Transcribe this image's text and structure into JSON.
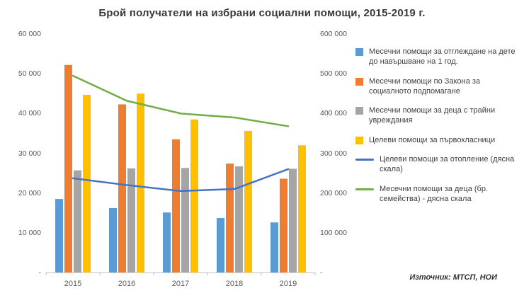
{
  "title": "Брой получатели на избрани социални помощи, 2015-2019 г.",
  "source": "Източник: МТСП, НОИ",
  "axes": {
    "left_ticks": [
      "60 000",
      "50 000",
      "40 000",
      "30 000",
      "20 000",
      "10 000",
      "-"
    ],
    "right_ticks": [
      "600 000",
      "500 000",
      "400 000",
      "300 000",
      "200 000",
      "100 000",
      "-"
    ]
  },
  "chart_data": {
    "type": "bar",
    "subtype": "bar-and-line-combo",
    "title": "Брой получатели на избрани социални помощи, 2015-2019 г.",
    "categories": [
      "2015",
      "2016",
      "2017",
      "2018",
      "2019"
    ],
    "left_axis": {
      "min": 0,
      "max": 60000,
      "tick_step": 10000
    },
    "right_axis": {
      "min": 0,
      "max": 600000,
      "tick_step": 100000
    },
    "grid": false,
    "legend_position": "right",
    "series": [
      {
        "name": "Месечни помощи за отглеждане на дете до навършване на 1 год.",
        "type": "bar",
        "axis": "left",
        "color": "#5B9BD5",
        "values": [
          18500,
          16200,
          15100,
          13700,
          12600
        ]
      },
      {
        "name": "Месечни помощи по Закона за социалното подпомагане",
        "type": "bar",
        "axis": "left",
        "color": "#ED7D31",
        "values": [
          52200,
          42300,
          33500,
          27400,
          23600
        ]
      },
      {
        "name": "Месечни помощи за деца с трайни увреждания",
        "type": "bar",
        "axis": "left",
        "color": "#A5A5A5",
        "values": [
          25700,
          26200,
          26300,
          26700,
          26100
        ]
      },
      {
        "name": "Целеви помощи за първокласници",
        "type": "bar",
        "axis": "left",
        "color": "#FFC000",
        "values": [
          44700,
          45000,
          38500,
          35600,
          32000
        ]
      },
      {
        "name": "Целеви помощи за отопление (дясна скала)",
        "type": "line",
        "axis": "right",
        "color": "#4472C4",
        "values": [
          237000,
          220000,
          205000,
          210000,
          260000
        ]
      },
      {
        "name": "Месечни помощи за деца (бр. семейства) - дясна скала",
        "type": "line",
        "axis": "right",
        "color": "#70AD47",
        "values": [
          495000,
          432000,
          400000,
          390000,
          368000
        ]
      }
    ]
  }
}
